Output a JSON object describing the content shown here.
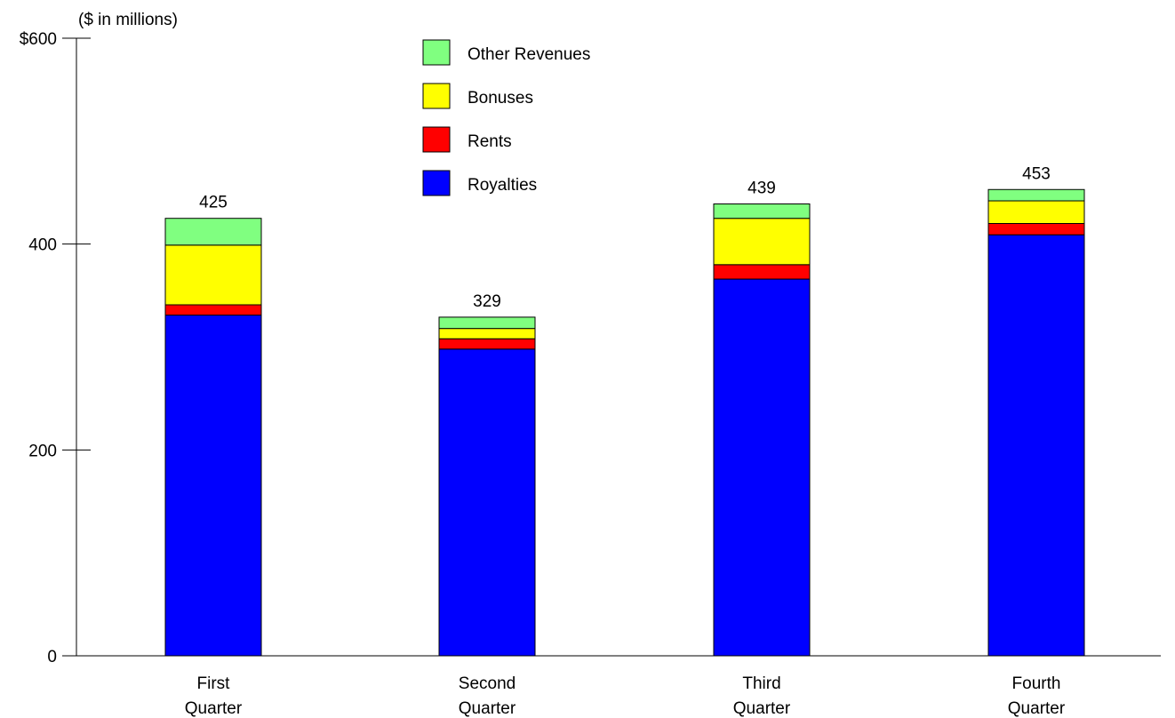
{
  "chart_data": {
    "type": "bar",
    "stacked": true,
    "unit_label": "($ in millions)",
    "categories": [
      [
        "First",
        "Quarter"
      ],
      [
        "Second",
        "Quarter"
      ],
      [
        "Third",
        "Quarter"
      ],
      [
        "Fourth",
        "Quarter"
      ]
    ],
    "series": [
      {
        "name": "Royalties",
        "color": "#0000ff",
        "values": [
          331,
          298,
          366,
          409
        ]
      },
      {
        "name": "Rents",
        "color": "#ff0000",
        "values": [
          10,
          10,
          14,
          11
        ]
      },
      {
        "name": "Bonuses",
        "color": "#ffff00",
        "values": [
          58,
          10,
          45,
          22
        ]
      },
      {
        "name": "Other Revenues",
        "color": "#80ff80",
        "values": [
          26,
          11,
          14,
          11
        ]
      }
    ],
    "totals": [
      "425",
      "329",
      "439",
      "453"
    ],
    "y_ticks": [
      {
        "value": 0,
        "label": "0"
      },
      {
        "value": 200,
        "label": "200"
      },
      {
        "value": 400,
        "label": "400"
      },
      {
        "value": 600,
        "label": "$600"
      }
    ],
    "ylim": [
      0,
      600
    ],
    "legend_order": [
      "Other Revenues",
      "Bonuses",
      "Rents",
      "Royalties"
    ],
    "legend_position": "top-center",
    "grid": false
  }
}
